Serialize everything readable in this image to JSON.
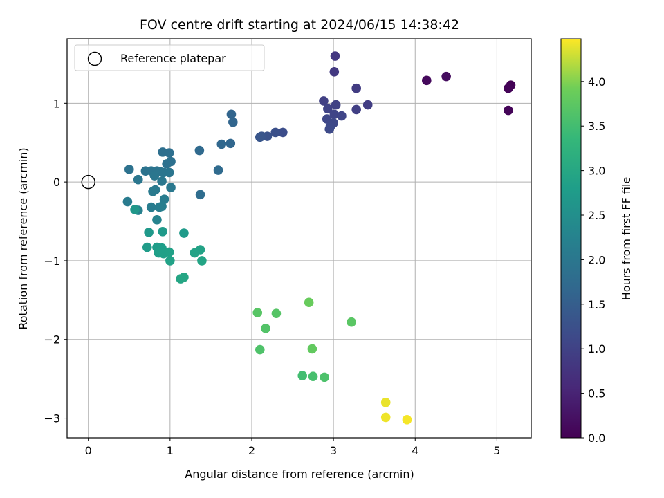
{
  "chart_data": {
    "type": "scatter",
    "title": "FOV centre drift starting at 2024/06/15 14:38:42",
    "xlabel": "Angular distance from reference (arcmin)",
    "ylabel": "Rotation from reference (arcmin)",
    "xlim": [
      -0.26,
      5.42
    ],
    "ylim": [
      -3.25,
      1.82
    ],
    "xticks": [
      0,
      1,
      2,
      3,
      4,
      5
    ],
    "yticks": [
      1,
      0,
      -1,
      -2,
      -3
    ],
    "xtick_labels": [
      "0",
      "1",
      "2",
      "3",
      "4",
      "5"
    ],
    "ytick_labels": [
      "1",
      "0",
      "−1",
      "−2",
      "−3"
    ],
    "grid": true,
    "legend": {
      "placement": "top-left",
      "entries": [
        {
          "label": "Reference platepar",
          "marker": "open-circle"
        }
      ]
    },
    "reference_point": {
      "x": 0,
      "y": 0
    },
    "colorbar": {
      "label": "Hours from first FF file",
      "colormap": "viridis",
      "range": [
        0,
        4.48
      ],
      "ticks": [
        0.0,
        0.5,
        1.0,
        1.5,
        2.0,
        2.5,
        3.0,
        3.5,
        4.0
      ],
      "tick_labels": [
        "0.0",
        "0.5",
        "1.0",
        "1.5",
        "2.0",
        "2.5",
        "3.0",
        "3.5",
        "4.0"
      ]
    },
    "points": [
      {
        "x": 5.17,
        "y": 1.23,
        "hours": 0.02
      },
      {
        "x": 5.14,
        "y": 1.19,
        "hours": 0.04
      },
      {
        "x": 5.14,
        "y": 0.91,
        "hours": 0.06
      },
      {
        "x": 4.14,
        "y": 1.29,
        "hours": 0.12
      },
      {
        "x": 4.38,
        "y": 1.34,
        "hours": 0.16
      },
      {
        "x": 3.02,
        "y": 1.6,
        "hours": 0.82
      },
      {
        "x": 3.01,
        "y": 1.4,
        "hours": 0.85
      },
      {
        "x": 3.28,
        "y": 1.19,
        "hours": 0.9
      },
      {
        "x": 3.42,
        "y": 0.98,
        "hours": 0.92
      },
      {
        "x": 3.28,
        "y": 0.92,
        "hours": 0.95
      },
      {
        "x": 2.88,
        "y": 1.03,
        "hours": 0.97
      },
      {
        "x": 3.03,
        "y": 0.98,
        "hours": 1.0
      },
      {
        "x": 2.93,
        "y": 0.93,
        "hours": 1.02
      },
      {
        "x": 3.01,
        "y": 0.86,
        "hours": 1.04
      },
      {
        "x": 3.1,
        "y": 0.84,
        "hours": 1.06
      },
      {
        "x": 2.92,
        "y": 0.8,
        "hours": 1.08
      },
      {
        "x": 3.0,
        "y": 0.75,
        "hours": 1.1
      },
      {
        "x": 2.96,
        "y": 0.7,
        "hours": 1.12
      },
      {
        "x": 2.95,
        "y": 0.67,
        "hours": 1.14
      },
      {
        "x": 2.38,
        "y": 0.63,
        "hours": 1.2
      },
      {
        "x": 2.29,
        "y": 0.63,
        "hours": 1.24
      },
      {
        "x": 2.19,
        "y": 0.58,
        "hours": 1.28
      },
      {
        "x": 2.12,
        "y": 0.58,
        "hours": 1.32
      },
      {
        "x": 2.1,
        "y": 0.57,
        "hours": 1.35
      },
      {
        "x": 1.75,
        "y": 0.86,
        "hours": 1.62
      },
      {
        "x": 1.77,
        "y": 0.76,
        "hours": 1.64
      },
      {
        "x": 1.74,
        "y": 0.49,
        "hours": 1.66
      },
      {
        "x": 1.63,
        "y": 0.48,
        "hours": 1.68
      },
      {
        "x": 1.36,
        "y": 0.4,
        "hours": 1.72
      },
      {
        "x": 1.59,
        "y": 0.15,
        "hours": 1.75
      },
      {
        "x": 1.37,
        "y": -0.16,
        "hours": 1.78
      },
      {
        "x": 0.91,
        "y": 0.38,
        "hours": 1.82
      },
      {
        "x": 0.99,
        "y": 0.37,
        "hours": 1.84
      },
      {
        "x": 1.01,
        "y": 0.26,
        "hours": 1.86
      },
      {
        "x": 0.96,
        "y": 0.23,
        "hours": 1.88
      },
      {
        "x": 0.5,
        "y": 0.16,
        "hours": 1.9
      },
      {
        "x": 0.7,
        "y": 0.14,
        "hours": 1.92
      },
      {
        "x": 0.77,
        "y": 0.14,
        "hours": 1.93
      },
      {
        "x": 0.84,
        "y": 0.14,
        "hours": 1.94
      },
      {
        "x": 0.88,
        "y": 0.13,
        "hours": 1.95
      },
      {
        "x": 0.92,
        "y": 0.12,
        "hours": 1.96
      },
      {
        "x": 0.99,
        "y": 0.12,
        "hours": 1.97
      },
      {
        "x": 0.81,
        "y": 0.08,
        "hours": 1.98
      },
      {
        "x": 0.61,
        "y": 0.03,
        "hours": 1.99
      },
      {
        "x": 0.9,
        "y": 0.01,
        "hours": 2.0
      },
      {
        "x": 1.01,
        "y": -0.07,
        "hours": 2.02
      },
      {
        "x": 0.82,
        "y": -0.1,
        "hours": 2.04
      },
      {
        "x": 0.79,
        "y": -0.12,
        "hours": 2.06
      },
      {
        "x": 0.48,
        "y": -0.25,
        "hours": 2.08
      },
      {
        "x": 0.93,
        "y": -0.22,
        "hours": 2.1
      },
      {
        "x": 0.77,
        "y": -0.32,
        "hours": 2.12
      },
      {
        "x": 0.87,
        "y": -0.32,
        "hours": 2.14
      },
      {
        "x": 0.9,
        "y": -0.31,
        "hours": 2.16
      },
      {
        "x": 0.61,
        "y": -0.36,
        "hours": 2.2
      },
      {
        "x": 0.84,
        "y": -0.48,
        "hours": 2.25
      },
      {
        "x": 0.57,
        "y": -0.35,
        "hours": 2.65
      },
      {
        "x": 0.74,
        "y": -0.64,
        "hours": 2.7
      },
      {
        "x": 0.91,
        "y": -0.63,
        "hours": 2.72
      },
      {
        "x": 1.17,
        "y": -0.65,
        "hours": 2.74
      },
      {
        "x": 0.72,
        "y": -0.83,
        "hours": 2.76
      },
      {
        "x": 0.84,
        "y": -0.83,
        "hours": 2.78
      },
      {
        "x": 0.9,
        "y": -0.84,
        "hours": 2.8
      },
      {
        "x": 0.86,
        "y": -0.9,
        "hours": 2.82
      },
      {
        "x": 0.92,
        "y": -0.91,
        "hours": 2.84
      },
      {
        "x": 0.99,
        "y": -0.89,
        "hours": 2.86
      },
      {
        "x": 1.0,
        "y": -1.0,
        "hours": 2.88
      },
      {
        "x": 1.37,
        "y": -0.86,
        "hours": 2.9
      },
      {
        "x": 1.3,
        "y": -0.9,
        "hours": 2.92
      },
      {
        "x": 1.39,
        "y": -1.0,
        "hours": 2.94
      },
      {
        "x": 1.13,
        "y": -1.23,
        "hours": 2.96
      },
      {
        "x": 1.17,
        "y": -1.21,
        "hours": 2.98
      },
      {
        "x": 2.62,
        "y": -2.46,
        "hours": 3.5
      },
      {
        "x": 2.75,
        "y": -2.47,
        "hours": 3.55
      },
      {
        "x": 2.89,
        "y": -2.48,
        "hours": 3.6
      },
      {
        "x": 2.1,
        "y": -2.13,
        "hours": 3.62
      },
      {
        "x": 2.17,
        "y": -1.86,
        "hours": 3.65
      },
      {
        "x": 2.3,
        "y": -1.67,
        "hours": 3.68
      },
      {
        "x": 2.07,
        "y": -1.66,
        "hours": 3.7
      },
      {
        "x": 3.22,
        "y": -1.78,
        "hours": 3.72
      },
      {
        "x": 2.74,
        "y": -2.12,
        "hours": 3.8
      },
      {
        "x": 2.7,
        "y": -1.53,
        "hours": 3.85
      },
      {
        "x": 3.64,
        "y": -2.8,
        "hours": 4.4
      },
      {
        "x": 3.64,
        "y": -2.99,
        "hours": 4.42
      },
      {
        "x": 3.9,
        "y": -3.02,
        "hours": 4.45
      }
    ]
  }
}
